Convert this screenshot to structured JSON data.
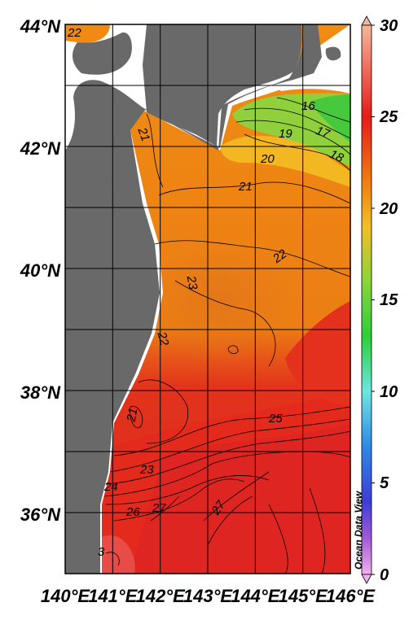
{
  "map": {
    "credit": "Ocean Data View",
    "lat_labels": [
      "44°N",
      "42°N",
      "40°N",
      "38°N",
      "36°N"
    ],
    "lon_labels": [
      "140°E",
      "141°E",
      "142°E",
      "143°E",
      "144°E",
      "145°E",
      "146°E"
    ],
    "extent": {
      "lon": [
        140,
        146
      ],
      "lat": [
        35,
        44
      ]
    },
    "contour_labels": [
      "22",
      "21",
      "16",
      "17",
      "19",
      "20",
      "18",
      "21",
      "22",
      "23",
      "22",
      "21",
      "25",
      "23",
      "24",
      "26",
      "27",
      "27",
      "3"
    ],
    "colors": {
      "land": "#696969",
      "coast_gap": "#ffffff",
      "grid": "#000000"
    }
  },
  "colorbar": {
    "ticks": [
      "30",
      "25",
      "20",
      "15",
      "10",
      "5",
      "0"
    ],
    "range": [
      0,
      30
    ],
    "stops": [
      {
        "value": 30,
        "color": "#f4b79a"
      },
      {
        "value": 25,
        "color": "#e81a1a"
      },
      {
        "value": 21,
        "color": "#f08a12"
      },
      {
        "value": 19,
        "color": "#f2bf24"
      },
      {
        "value": 16,
        "color": "#8ad43a"
      },
      {
        "value": 13,
        "color": "#2ccf3a"
      },
      {
        "value": 10,
        "color": "#6ee6e0"
      },
      {
        "value": 7,
        "color": "#2e8ae6"
      },
      {
        "value": 4,
        "color": "#3d3dd9"
      },
      {
        "value": 2,
        "color": "#a05ad6"
      },
      {
        "value": 0,
        "color": "#f2b0ef"
      }
    ]
  }
}
